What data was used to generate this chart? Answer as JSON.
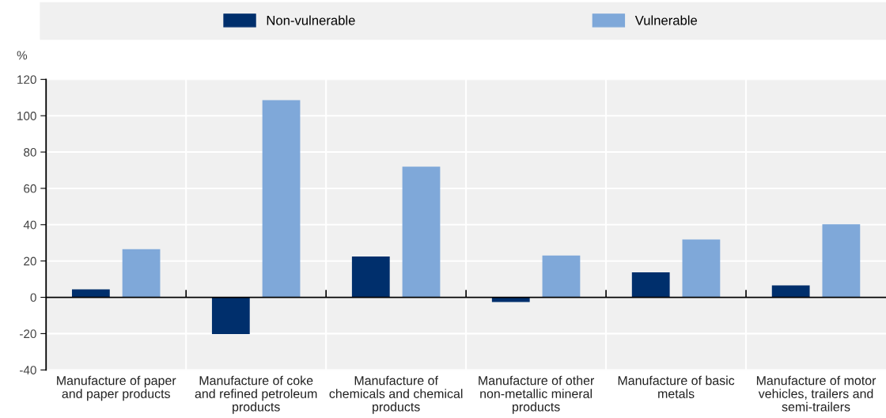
{
  "chart_data": {
    "type": "bar",
    "ylabel": "%",
    "categories": [
      "Manufacture of paper\nand paper products",
      "Manufacture of coke\nand refined petroleum\nproducts",
      "Manufacture of\nchemicals and chemical\nproducts",
      "Manufacture of other\nnon-metallic mineral\nproducts",
      "Manufacture of basic\nmetals",
      "Manufacture of motor\nvehicles, trailers and\nsemi-trailers"
    ],
    "series": [
      {
        "name": "Non-vulnerable",
        "color": "#002f6c",
        "values": [
          4.4,
          -20.3,
          22.5,
          -2.6,
          13.7,
          6.6
        ]
      },
      {
        "name": "Vulnerable",
        "color": "#7fa8d9",
        "values": [
          26.5,
          108.6,
          72,
          23,
          31.8,
          40.2
        ]
      }
    ],
    "ylim": [
      -40,
      120
    ],
    "yticks": [
      -40,
      -20,
      0,
      20,
      40,
      60,
      80,
      100,
      120
    ],
    "grid": true,
    "legend": "top"
  }
}
